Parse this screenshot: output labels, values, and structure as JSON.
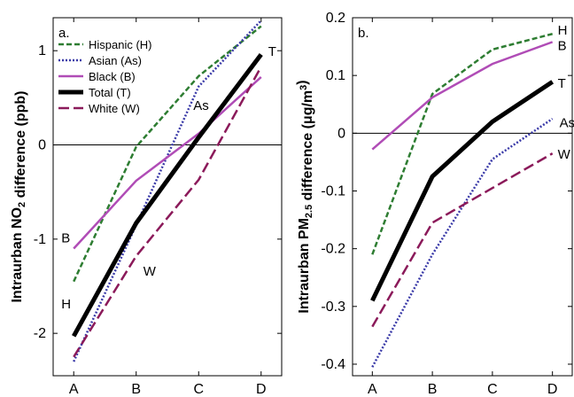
{
  "chart_data": [
    {
      "type": "line",
      "panel_label": "a.",
      "ylabel_parts": [
        "Intraurban NO",
        "2",
        " difference (ppb)"
      ],
      "categories": [
        "A",
        "B",
        "C",
        "D"
      ],
      "ylim": [
        -2.45,
        1.35
      ],
      "yticks": [
        "-2",
        "-1",
        "0",
        "1"
      ],
      "ytick_values": [
        -2,
        -1,
        0,
        1
      ],
      "zero_line": 0,
      "legend_position": "top-left",
      "series": [
        {
          "name": "Hispanic (H)",
          "tag": "H",
          "values": [
            -1.45,
            -0.02,
            0.73,
            1.26
          ],
          "color": "#2e7d32",
          "dash": "6,3",
          "width": 2.5
        },
        {
          "name": "Asian (As)",
          "tag": "As",
          "values": [
            -2.3,
            -0.85,
            0.62,
            1.32
          ],
          "color": "#3a3aa8",
          "dash": "2,2",
          "width": 2.5
        },
        {
          "name": "Black (B)",
          "tag": "B",
          "values": [
            -1.1,
            -0.38,
            0.12,
            0.72
          ],
          "color": "#b04cb6",
          "dash": "",
          "width": 2.5
        },
        {
          "name": "Total (T)",
          "tag": "T",
          "values": [
            -2.03,
            -0.83,
            0.08,
            0.96
          ],
          "color": "#000000",
          "dash": "",
          "width": 5
        },
        {
          "name": "White (W)",
          "tag": "W",
          "values": [
            -2.25,
            -1.18,
            -0.37,
            0.83
          ],
          "color": "#8b1a5a",
          "dash": "12,5",
          "width": 2.5
        }
      ],
      "annotations": [
        {
          "text": "H",
          "x": "A",
          "y": -1.68
        },
        {
          "text": "B",
          "x": "A",
          "y": -0.98
        },
        {
          "text": "W",
          "x": "B",
          "y": -1.33
        },
        {
          "text": "As",
          "x": "C",
          "y": 0.43
        },
        {
          "text": "T",
          "x": "D",
          "y": 1.0
        }
      ]
    },
    {
      "type": "line",
      "panel_label": "b.",
      "ylabel_parts": [
        "Intraurban PM",
        "2.5",
        " difference (μg/m",
        "3",
        ")"
      ],
      "categories": [
        "A",
        "B",
        "C",
        "D"
      ],
      "ylim": [
        -0.42,
        0.2
      ],
      "yticks": [
        "-0.4",
        "-0.3",
        "-0.2",
        "-0.1",
        "0",
        "0.1",
        "0.2"
      ],
      "ytick_values": [
        -0.4,
        -0.3,
        -0.2,
        -0.1,
        0,
        0.1,
        0.2
      ],
      "zero_line": 0,
      "series": [
        {
          "name": "Hispanic (H)",
          "tag": "H",
          "values": [
            -0.21,
            0.068,
            0.145,
            0.172
          ],
          "color": "#2e7d32",
          "dash": "6,3",
          "width": 2.5
        },
        {
          "name": "Asian (As)",
          "tag": "As",
          "values": [
            -0.405,
            -0.21,
            -0.045,
            0.025
          ],
          "color": "#3a3aa8",
          "dash": "2,2",
          "width": 2.5
        },
        {
          "name": "Black (B)",
          "tag": "B",
          "values": [
            -0.028,
            0.062,
            0.12,
            0.158
          ],
          "color": "#b04cb6",
          "dash": "",
          "width": 2.5
        },
        {
          "name": "Total (T)",
          "tag": "T",
          "values": [
            -0.29,
            -0.075,
            0.02,
            0.089
          ],
          "color": "#000000",
          "dash": "",
          "width": 5
        },
        {
          "name": "White (W)",
          "tag": "W",
          "values": [
            -0.335,
            -0.155,
            -0.095,
            -0.035
          ],
          "color": "#8b1a5a",
          "dash": "12,5",
          "width": 2.5
        }
      ],
      "annotations": [
        {
          "text": "H",
          "x": "D",
          "y": 0.18
        },
        {
          "text": "B",
          "x": "D",
          "y": 0.153
        },
        {
          "text": "T",
          "x": "D",
          "y": 0.088
        },
        {
          "text": "As",
          "x": "D",
          "y": 0.02
        },
        {
          "text": "W",
          "x": "D",
          "y": -0.035
        }
      ]
    }
  ]
}
